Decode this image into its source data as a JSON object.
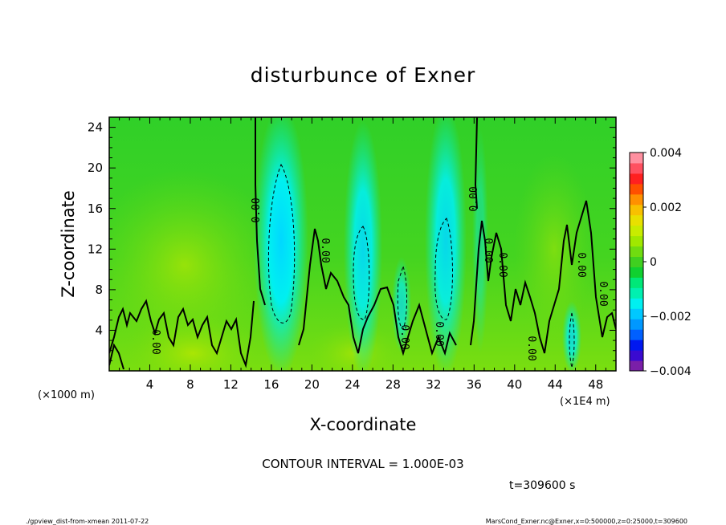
{
  "chart_data": {
    "type": "heatmap",
    "title": "disturbunce of Exner",
    "xlabel": "X-coordinate",
    "ylabel": "Z-coordinate",
    "x_unit_left": "(×1000 m)",
    "x_unit_right": "(×1E4 m)",
    "x_ticks": [
      "4",
      "8",
      "12",
      "16",
      "20",
      "24",
      "28",
      "32",
      "36",
      "40",
      "44",
      "48"
    ],
    "y_ticks": [
      "4",
      "8",
      "12",
      "16",
      "20",
      "24"
    ],
    "xlim": [
      0,
      50
    ],
    "ylim": [
      0,
      25
    ],
    "colorbar": {
      "labels": [
        "0.004",
        "0.002",
        "0",
        "−0.002",
        "−0.004"
      ],
      "range": [
        -0.004,
        0.004
      ],
      "colors": [
        "#7a1fa8",
        "#3a0ad0",
        "#0018f0",
        "#0060ff",
        "#0098ff",
        "#00c8ff",
        "#00f0f0",
        "#00f0b0",
        "#00e878",
        "#10d030",
        "#40d020",
        "#70dc10",
        "#a0e800",
        "#c8ec00",
        "#e8e000",
        "#f8c000",
        "#ff9000",
        "#ff5000",
        "#ff2020",
        "#ff5060",
        "#ff90a0"
      ]
    },
    "contour_label": "0.00",
    "contour_interval_text": "CONTOUR INTERVAL = 1.000E-03"
  },
  "time_text": "t=309600 s",
  "footer": {
    "left": "./gpview_dist-from-xmean  2011-07-22",
    "right": "MarsCond_Exner.nc@Exner,x=0:500000,z=0:25000,t=309600"
  }
}
